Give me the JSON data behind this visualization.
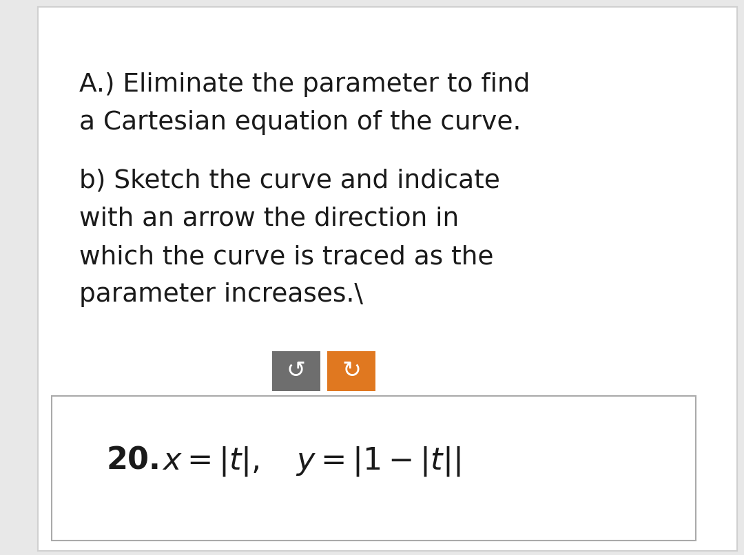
{
  "background_color": "#e8e8e8",
  "card_color": "#ffffff",
  "card_border_color": "#d0d0d0",
  "text_line1": "A.) Eliminate the parameter to find",
  "text_line2": "a Cartesian equation of the curve.",
  "text_line3": "b) Sketch the curve and indicate",
  "text_line4": "with an arrow the direction in",
  "text_line5": "which the curve is traced as the",
  "text_line6": "parameter increases.\\",
  "btn1_color": "#6e6e6e",
  "btn2_color": "#e07820",
  "formula_latex": "$\\mathbf{20.}$ $x = |t|, \\quad y = |1 - |t||$",
  "formula_number": "20.",
  "formula_expr": "$x = |t|, \\quad y = |1 - |t||$",
  "formula_fontsize": 32,
  "text_fontsize": 27,
  "font_family": "DejaVu Sans"
}
